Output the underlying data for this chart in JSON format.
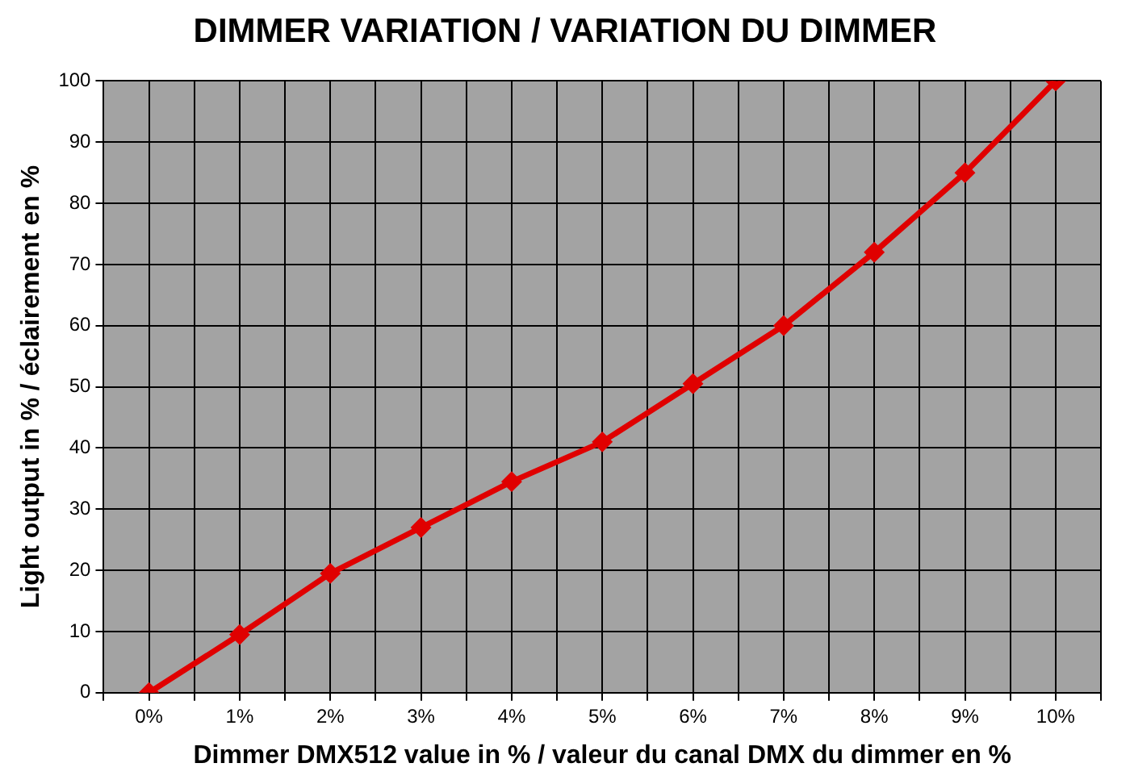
{
  "chart_data": {
    "type": "line",
    "title": "DIMMER VARIATION / VARIATION DU DIMMER",
    "xlabel": "Dimmer DMX512 value in % / valeur du canal DMX du dimmer en %",
    "ylabel": "Light output in % / éclairement en %",
    "x": [
      0,
      1,
      2,
      3,
      4,
      5,
      6,
      7,
      8,
      9,
      10
    ],
    "series": [
      {
        "color": "#e00000",
        "values": [
          0,
          9.5,
          19.5,
          27,
          34.5,
          41,
          50.5,
          60,
          72,
          85,
          100
        ]
      }
    ],
    "xlim": [
      -0.5,
      10.5
    ],
    "xticks": [
      {
        "value": -0.5,
        "label": null
      },
      {
        "value": 0,
        "label": "0%"
      },
      {
        "value": 0.5,
        "label": null
      },
      {
        "value": 1,
        "label": "1%"
      },
      {
        "value": 1.5,
        "label": null
      },
      {
        "value": 2,
        "label": "2%"
      },
      {
        "value": 2.5,
        "label": null
      },
      {
        "value": 3,
        "label": "3%"
      },
      {
        "value": 3.5,
        "label": null
      },
      {
        "value": 4,
        "label": "4%"
      },
      {
        "value": 4.5,
        "label": null
      },
      {
        "value": 5,
        "label": "5%"
      },
      {
        "value": 5.5,
        "label": null
      },
      {
        "value": 6,
        "label": "6%"
      },
      {
        "value": 6.5,
        "label": null
      },
      {
        "value": 7,
        "label": "7%"
      },
      {
        "value": 7.5,
        "label": null
      },
      {
        "value": 8,
        "label": "8%"
      },
      {
        "value": 8.5,
        "label": null
      },
      {
        "value": 9,
        "label": "9%"
      },
      {
        "value": 9.5,
        "label": null
      },
      {
        "value": 10,
        "label": "10%"
      },
      {
        "value": 10.5,
        "label": null
      }
    ],
    "ylim": [
      0,
      100
    ],
    "yticks": [
      0,
      10,
      20,
      30,
      40,
      50,
      60,
      70,
      80,
      90,
      100
    ],
    "grid": true,
    "legend": false,
    "marker": "diamond",
    "line_style": "solid"
  }
}
